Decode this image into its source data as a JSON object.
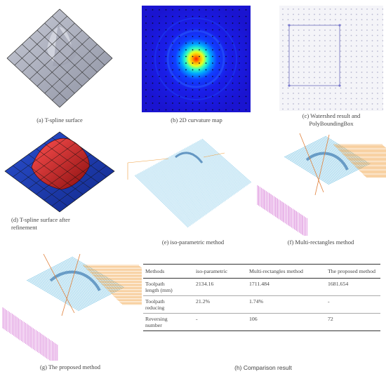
{
  "captions": {
    "a": "(a) T-spline surface",
    "b": "(b) 2D curvature map",
    "c_line1": "(c) Watershed result and",
    "c_line2": "PolyBoundingBox",
    "d_line1": "(d) T-spline surface after",
    "d_line2": "refinement",
    "e": "(e) iso-parametric method",
    "f": "(f) Multi-rectangles method",
    "g": "(g) The proposed method",
    "h": "(h) Comparison result"
  },
  "table": {
    "headers": [
      "Methods",
      "iso-parametric",
      "Multi-rectangles method",
      "The proposed method"
    ],
    "rows": [
      {
        "label_1": "Toolpath",
        "label_2": "length (mm)",
        "iso": "2134.16",
        "multi": "1711.484",
        "proposed": "1681.654"
      },
      {
        "label_1": "Toolpath",
        "label_2": "reducing",
        "iso": "21.2%",
        "multi": "1.74%",
        "proposed": "-"
      },
      {
        "label_1": "Reversing",
        "label_2": "number",
        "iso": "-",
        "multi": "106",
        "proposed": "72"
      }
    ]
  },
  "colors": {
    "surface_grey": "#b9bcc8",
    "refined_blue": "#1d3fb8",
    "refined_red": "#c41a1a",
    "toolpath_cyan": "#36a8d8",
    "toolpath_orange": "#f0a040",
    "toolpath_magenta": "#c030c0",
    "curvature_bg": "#1a14e0"
  }
}
